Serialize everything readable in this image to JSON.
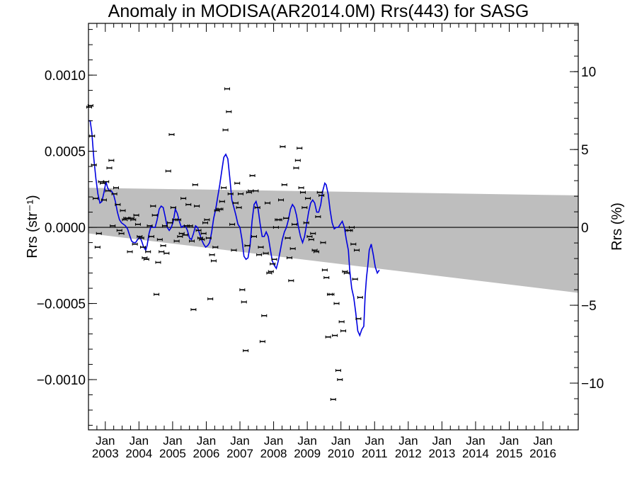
{
  "chart_data": {
    "type": "scatter",
    "title": "Anomaly in MODISA(AR2014.0M) Rrs(443) for SASG",
    "ylabel_left": "Rrs (str⁻¹)",
    "ylabel_right": "Rrs (%)",
    "xlim": [
      2002.5,
      2017.05
    ],
    "ylim_left": [
      -0.00133,
      0.00134
    ],
    "ylim_right": [
      -13.0,
      13.1
    ],
    "left_ticks": [
      {
        "value": 0.001,
        "label": "0.0010"
      },
      {
        "value": 0.0005,
        "label": "0.0005"
      },
      {
        "value": 0.0,
        "label": "0.0000"
      },
      {
        "value": -0.0005,
        "label": "−0.0005"
      },
      {
        "value": -0.001,
        "label": "−0.0010"
      }
    ],
    "right_ticks": [
      {
        "value": 10,
        "label": "10"
      },
      {
        "value": 5,
        "label": "5"
      },
      {
        "value": 0,
        "label": "0"
      },
      {
        "value": -5,
        "label": "−5"
      },
      {
        "value": -10,
        "label": "−10"
      }
    ],
    "x_ticks": [
      {
        "value": 2003.0,
        "month": "Jan",
        "year": "2003"
      },
      {
        "value": 2004.0,
        "month": "Jan",
        "year": "2004"
      },
      {
        "value": 2005.0,
        "month": "Jan",
        "year": "2005"
      },
      {
        "value": 2006.0,
        "month": "Jan",
        "year": "2006"
      },
      {
        "value": 2007.0,
        "month": "Jan",
        "year": "2007"
      },
      {
        "value": 2008.0,
        "month": "Jan",
        "year": "2008"
      },
      {
        "value": 2009.0,
        "month": "Jan",
        "year": "2009"
      },
      {
        "value": 2010.0,
        "month": "Jan",
        "year": "2010"
      },
      {
        "value": 2011.0,
        "month": "Jan",
        "year": "2011"
      },
      {
        "value": 2012.0,
        "month": "Jan",
        "year": "2012"
      },
      {
        "value": 2013.0,
        "month": "Jan",
        "year": "2013"
      },
      {
        "value": 2014.0,
        "month": "Jan",
        "year": "2014"
      },
      {
        "value": 2015.0,
        "month": "Jan",
        "year": "2015"
      },
      {
        "value": 2016.0,
        "month": "Jan",
        "year": "2016"
      }
    ],
    "band": {
      "color": "#bebebe",
      "upper": [
        [
          2002.5,
          0.00026
        ],
        [
          2017.05,
          0.00021
        ]
      ],
      "lower": [
        [
          2002.5,
          -4e-05
        ],
        [
          2017.05,
          -0.00043
        ]
      ]
    },
    "zero_line": 0.0,
    "points": [
      [
        2002.52,
        0.00079
      ],
      [
        2002.56,
        0.0008
      ],
      [
        2002.61,
        0.0006
      ],
      [
        2002.66,
        0.00041
      ],
      [
        2002.71,
        0.00019
      ],
      [
        2002.77,
        -0.00013
      ],
      [
        2002.81,
        -4e-05
      ],
      [
        2002.87,
        0.0003
      ],
      [
        2002.92,
        0.00029
      ],
      [
        2002.96,
        0.00018
      ],
      [
        2003.03,
        0.0003
      ],
      [
        2003.08,
        0.00024
      ],
      [
        2003.12,
        0.00039
      ],
      [
        2003.18,
        0.00044
      ],
      [
        2003.22,
        1e-05
      ],
      [
        2003.27,
        0.00022
      ],
      [
        2003.32,
        0.00026
      ],
      [
        2003.37,
        0.00015
      ],
      [
        2003.42,
        -2e-05
      ],
      [
        2003.48,
        -4e-05
      ],
      [
        2003.52,
        0.00011
      ],
      [
        2003.58,
        5e-05
      ],
      [
        2003.62,
        6e-05
      ],
      [
        2003.67,
        6e-05
      ],
      [
        2003.73,
        -0.00016
      ],
      [
        2003.78,
        6e-05
      ],
      [
        2003.83,
        5e-05
      ],
      [
        2003.88,
        -0.00011
      ],
      [
        2003.92,
        8e-05
      ],
      [
        2003.97,
        2e-05
      ],
      [
        2004.02,
        -6e-05
      ],
      [
        2004.07,
        -7e-05
      ],
      [
        2004.12,
        -0.00013
      ],
      [
        2004.17,
        -0.0002
      ],
      [
        2004.22,
        -0.00021
      ],
      [
        2004.27,
        -0.00016
      ],
      [
        2004.32,
        1e-05
      ],
      [
        2004.37,
        -6e-05
      ],
      [
        2004.42,
        0.00014
      ],
      [
        2004.47,
        8e-05
      ],
      [
        2004.52,
        -0.00044
      ],
      [
        2004.57,
        -0.00023
      ],
      [
        2004.62,
        -8e-05
      ],
      [
        2004.67,
        -0.00016
      ],
      [
        2004.72,
        -0.00012
      ],
      [
        2004.77,
        1e-05
      ],
      [
        2004.82,
        -0.00017
      ],
      [
        2004.87,
        0.00037
      ],
      [
        2004.92,
        3e-05
      ],
      [
        2004.97,
        0.00061
      ],
      [
        2005.02,
        0.00013
      ],
      [
        2005.07,
        5e-05
      ],
      [
        2005.12,
        -9e-05
      ],
      [
        2005.17,
        5e-05
      ],
      [
        2005.22,
        -6e-05
      ],
      [
        2005.27,
        -4e-05
      ],
      [
        2005.32,
        0.00019
      ],
      [
        2005.37,
        -5e-05
      ],
      [
        2005.42,
        1e-05
      ],
      [
        2005.47,
        0.00015
      ],
      [
        2005.52,
        1e-05
      ],
      [
        2005.57,
        -9e-05
      ],
      [
        2005.62,
        -0.00054
      ],
      [
        2005.67,
        0.00028
      ],
      [
        2005.72,
        0.00014
      ],
      [
        2005.77,
        -2e-05
      ],
      [
        2005.82,
        -7e-05
      ],
      [
        2005.87,
        -8e-05
      ],
      [
        2005.92,
        -4e-05
      ],
      [
        2005.97,
        3e-05
      ],
      [
        2006.02,
        5e-05
      ],
      [
        2006.07,
        -7e-05
      ],
      [
        2006.12,
        -0.00047
      ],
      [
        2006.17,
        -0.00018
      ],
      [
        2006.22,
        -0.00022
      ],
      [
        2006.27,
        -0.00013
      ],
      [
        2006.32,
        0.00011
      ],
      [
        2006.37,
        0.00012
      ],
      [
        2006.42,
        0.00012
      ],
      [
        2006.47,
        0.00017
      ],
      [
        2006.52,
        0.00026
      ],
      [
        2006.57,
        0.00064
      ],
      [
        2006.62,
        0.00091
      ],
      [
        2006.67,
        0.00076
      ],
      [
        2006.72,
        0.00022
      ],
      [
        2006.77,
        2e-05
      ],
      [
        2006.82,
        -0.00015
      ],
      [
        2006.87,
        0.00016
      ],
      [
        2006.92,
        0.00029
      ],
      [
        2006.97,
        0.00013
      ],
      [
        2007.02,
        0.00022
      ],
      [
        2007.07,
        -0.00041
      ],
      [
        2007.12,
        -0.00049
      ],
      [
        2007.17,
        -0.00081
      ],
      [
        2007.22,
        -0.00012
      ],
      [
        2007.27,
        0.00023
      ],
      [
        2007.32,
        0.00024
      ],
      [
        2007.37,
        0.00034
      ],
      [
        2007.42,
        -6e-05
      ],
      [
        2007.47,
        0.00024
      ],
      [
        2007.52,
        0.00013
      ],
      [
        2007.57,
        -0.00018
      ],
      [
        2007.62,
        -0.00013
      ],
      [
        2007.67,
        -0.00075
      ],
      [
        2007.72,
        -0.00058
      ],
      [
        2007.77,
        -0.00017
      ],
      [
        2007.82,
        0.00016
      ],
      [
        2007.87,
        -0.0003
      ],
      [
        2007.92,
        -0.00029
      ],
      [
        2007.97,
        -0.00024
      ],
      [
        2008.02,
        -0.00021
      ],
      [
        2008.07,
        0.0
      ],
      [
        2008.12,
        5e-05
      ],
      [
        2008.17,
        5e-05
      ],
      [
        2008.22,
        0.00018
      ],
      [
        2008.27,
        0.00053
      ],
      [
        2008.32,
        0.00028
      ],
      [
        2008.37,
        6e-05
      ],
      [
        2008.42,
        -7e-05
      ],
      [
        2008.47,
        -0.0002
      ],
      [
        2008.52,
        -0.00035
      ],
      [
        2008.57,
        -0.00014
      ],
      [
        2008.62,
        2e-05
      ],
      [
        2008.67,
        0.00039
      ],
      [
        2008.72,
        0.00044
      ],
      [
        2008.77,
        0.00052
      ],
      [
        2008.82,
        0.00026
      ],
      [
        2008.87,
        0.00023
      ],
      [
        2008.92,
        0.00013
      ],
      [
        2008.97,
        3e-05
      ],
      [
        2009.02,
        0.00019
      ],
      [
        2009.07,
        -6e-05
      ],
      [
        2009.12,
        -8e-05
      ],
      [
        2009.17,
        -4e-05
      ],
      [
        2009.22,
        -0.00015
      ],
      [
        2009.27,
        -0.00016
      ],
      [
        2009.32,
        7e-05
      ],
      [
        2009.37,
        0.00023
      ],
      [
        2009.42,
        0.00021
      ],
      [
        2009.47,
        -0.0001
      ],
      [
        2009.52,
        -0.00028
      ],
      [
        2009.57,
        -0.00033
      ],
      [
        2009.62,
        -0.00072
      ],
      [
        2009.67,
        -0.00044
      ],
      [
        2009.72,
        -0.00044
      ],
      [
        2009.77,
        -0.00113
      ],
      [
        2009.82,
        -0.00071
      ],
      [
        2009.87,
        -0.0005
      ],
      [
        2009.92,
        -0.00094
      ],
      [
        2009.97,
        -0.001
      ],
      [
        2010.02,
        -0.00062
      ],
      [
        2010.07,
        -0.00068
      ],
      [
        2010.12,
        -0.00029
      ],
      [
        2010.17,
        -0.0003
      ],
      [
        2010.22,
        -2e-05
      ],
      [
        2010.27,
        -2e-05
      ],
      [
        2010.32,
        0.0
      ],
      [
        2010.37,
        -0.00011
      ],
      [
        2010.42,
        -0.00034
      ],
      [
        2010.47,
        -0.00015
      ],
      [
        2010.52,
        -0.0006
      ],
      [
        2010.57,
        -0.00046
      ]
    ],
    "trend_line": {
      "color": "#0000e0",
      "points": [
        [
          2002.5,
          0.0007
        ],
        [
          2002.55,
          0.0007
        ],
        [
          2002.6,
          0.00062
        ],
        [
          2002.66,
          0.00045
        ],
        [
          2002.72,
          0.00032
        ],
        [
          2002.78,
          0.00022
        ],
        [
          2002.84,
          0.00016
        ],
        [
          2002.9,
          0.00017
        ],
        [
          2002.96,
          0.00023
        ],
        [
          2003.02,
          0.0003
        ],
        [
          2003.07,
          0.00026
        ],
        [
          2003.12,
          0.00024
        ],
        [
          2003.18,
          0.00024
        ],
        [
          2003.24,
          0.00022
        ],
        [
          2003.3,
          0.00017
        ],
        [
          2003.36,
          0.0001
        ],
        [
          2003.42,
          5e-05
        ],
        [
          2003.48,
          3e-05
        ],
        [
          2003.54,
          2e-05
        ],
        [
          2003.6,
          1e-05
        ],
        [
          2003.66,
          -1e-05
        ],
        [
          2003.72,
          -5e-05
        ],
        [
          2003.78,
          -9e-05
        ],
        [
          2003.84,
          -0.0001
        ],
        [
          2003.9,
          -0.0001
        ],
        [
          2003.96,
          -8e-05
        ],
        [
          2004.02,
          -6e-05
        ],
        [
          2004.08,
          -9e-05
        ],
        [
          2004.14,
          -0.00013
        ],
        [
          2004.2,
          -0.00015
        ],
        [
          2004.24,
          -0.00012
        ],
        [
          2004.3,
          -4e-05
        ],
        [
          2004.36,
          1e-05
        ],
        [
          2004.42,
          0.0
        ],
        [
          2004.48,
          0.0
        ],
        [
          2004.54,
          5e-05
        ],
        [
          2004.6,
          0.00012
        ],
        [
          2004.66,
          0.00014
        ],
        [
          2004.72,
          0.00013
        ],
        [
          2004.78,
          7e-05
        ],
        [
          2004.84,
          0.0
        ],
        [
          2004.9,
          -2e-05
        ],
        [
          2004.96,
          0.0
        ],
        [
          2005.02,
          4e-05
        ],
        [
          2005.08,
          0.00012
        ],
        [
          2005.14,
          9e-05
        ],
        [
          2005.2,
          4e-05
        ],
        [
          2005.26,
          0.0
        ],
        [
          2005.32,
          1e-05
        ],
        [
          2005.38,
          1e-05
        ],
        [
          2005.44,
          -2e-05
        ],
        [
          2005.5,
          -7e-05
        ],
        [
          2005.56,
          -8e-05
        ],
        [
          2005.62,
          -4e-05
        ],
        [
          2005.68,
          1e-05
        ],
        [
          2005.74,
          0.0
        ],
        [
          2005.8,
          -4e-05
        ],
        [
          2005.86,
          -8e-05
        ],
        [
          2005.92,
          -0.00011
        ],
        [
          2005.98,
          -0.00013
        ],
        [
          2006.04,
          -0.00012
        ],
        [
          2006.1,
          -0.0001
        ],
        [
          2006.16,
          -3e-05
        ],
        [
          2006.22,
          6e-05
        ],
        [
          2006.28,
          0.00012
        ],
        [
          2006.34,
          0.0002
        ],
        [
          2006.4,
          0.00028
        ],
        [
          2006.46,
          0.00037
        ],
        [
          2006.52,
          0.00046
        ],
        [
          2006.58,
          0.00048
        ],
        [
          2006.64,
          0.00045
        ],
        [
          2006.7,
          0.00032
        ],
        [
          2006.76,
          0.00018
        ],
        [
          2006.82,
          0.00013
        ],
        [
          2006.88,
          8e-05
        ],
        [
          2006.94,
          2e-05
        ],
        [
          2007.0,
          0.0
        ],
        [
          2007.06,
          -8e-05
        ],
        [
          2007.12,
          -0.00019
        ],
        [
          2007.18,
          -0.00021
        ],
        [
          2007.24,
          -0.0002
        ],
        [
          2007.3,
          -0.00012
        ],
        [
          2007.36,
          4e-05
        ],
        [
          2007.42,
          0.00015
        ],
        [
          2007.48,
          0.00017
        ],
        [
          2007.54,
          0.00012
        ],
        [
          2007.6,
          2e-05
        ],
        [
          2007.66,
          -6e-05
        ],
        [
          2007.72,
          -6e-05
        ],
        [
          2007.78,
          -3e-05
        ],
        [
          2007.84,
          -6e-05
        ],
        [
          2007.9,
          -0.00014
        ],
        [
          2007.96,
          -0.00022
        ],
        [
          2008.02,
          -0.00025
        ],
        [
          2008.08,
          -0.00027
        ],
        [
          2008.14,
          -0.00022
        ],
        [
          2008.2,
          -0.00015
        ],
        [
          2008.26,
          -8e-05
        ],
        [
          2008.32,
          -3e-05
        ],
        [
          2008.38,
          0.0
        ],
        [
          2008.44,
          5e-05
        ],
        [
          2008.5,
          0.00012
        ],
        [
          2008.56,
          0.00015
        ],
        [
          2008.62,
          0.00013
        ],
        [
          2008.68,
          8e-05
        ],
        [
          2008.74,
          0.0
        ],
        [
          2008.8,
          -6e-05
        ],
        [
          2008.86,
          -0.0001
        ],
        [
          2008.92,
          -6e-05
        ],
        [
          2008.98,
          2e-05
        ],
        [
          2009.04,
          0.0001
        ],
        [
          2009.1,
          0.00016
        ],
        [
          2009.16,
          0.00018
        ],
        [
          2009.22,
          0.00016
        ],
        [
          2009.28,
          0.0001
        ],
        [
          2009.34,
          0.0001
        ],
        [
          2009.4,
          0.00015
        ],
        [
          2009.46,
          0.00024
        ],
        [
          2009.52,
          0.00029
        ],
        [
          2009.56,
          0.00028
        ],
        [
          2009.62,
          0.00022
        ],
        [
          2009.68,
          0.00011
        ],
        [
          2009.74,
          3e-05
        ],
        [
          2009.8,
          -1e-05
        ],
        [
          2009.86,
          0.0
        ],
        [
          2009.92,
          0.0
        ],
        [
          2009.98,
          2e-05
        ],
        [
          2010.04,
          4e-05
        ],
        [
          2010.1,
          0.0
        ],
        [
          2010.16,
          -8e-05
        ],
        [
          2010.22,
          -0.00015
        ],
        [
          2010.26,
          -0.00028
        ],
        [
          2010.32,
          -0.0004
        ],
        [
          2010.38,
          -0.00046
        ],
        [
          2010.44,
          -0.00056
        ],
        [
          2010.5,
          -0.00068
        ],
        [
          2010.56,
          -0.00071
        ],
        [
          2010.62,
          -0.00067
        ],
        [
          2010.68,
          -0.00065
        ],
        [
          2010.72,
          -0.00045
        ],
        [
          2010.76,
          -0.00033
        ],
        [
          2010.8,
          -0.00025
        ],
        [
          2010.84,
          -0.00015
        ],
        [
          2010.9,
          -0.00011
        ],
        [
          2010.96,
          -0.00018
        ],
        [
          2011.02,
          -0.00026
        ],
        [
          2011.08,
          -0.0003
        ],
        [
          2011.14,
          -0.00028
        ]
      ]
    }
  }
}
